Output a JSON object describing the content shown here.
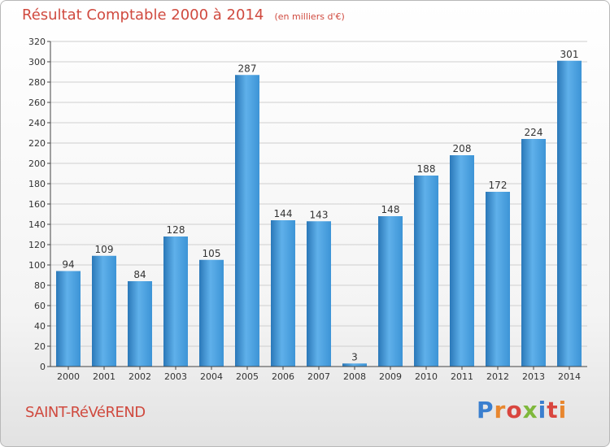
{
  "header": {
    "title": "Résultat Comptable 2000 à 2014",
    "subtitle": "(en milliers d'€)"
  },
  "footer": {
    "location": "SAINT-RéVéREND",
    "logo_text": "Proxiti",
    "logo_colors": [
      "#3a7fcf",
      "#e8872f",
      "#d9463f",
      "#7fb83c",
      "#3a7fcf",
      "#d9463f",
      "#e8872f"
    ]
  },
  "colors": {
    "bar": "#3d94d6",
    "bar_light": "#5fb0ea",
    "bar_dark": "#2a78b8",
    "grid": "#cfcfcf",
    "axis": "#444444"
  },
  "chart_data": {
    "type": "bar",
    "categories": [
      "2000",
      "2001",
      "2002",
      "2003",
      "2004",
      "2005",
      "2006",
      "2007",
      "2008",
      "2009",
      "2010",
      "2011",
      "2012",
      "2013",
      "2014"
    ],
    "values": [
      94,
      109,
      84,
      128,
      105,
      287,
      144,
      143,
      3,
      148,
      188,
      208,
      172,
      224,
      301
    ],
    "ylim": [
      0,
      320
    ],
    "yticks": [
      0,
      20,
      40,
      60,
      80,
      100,
      120,
      140,
      160,
      180,
      200,
      220,
      240,
      260,
      280,
      300,
      320
    ],
    "grid": true,
    "legend": "none"
  }
}
